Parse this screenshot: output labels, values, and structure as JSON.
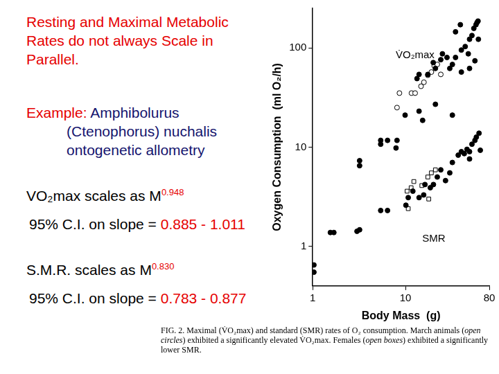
{
  "chart_data": {
    "type": "scatter",
    "ylabel": "Oxygen Consumption  (ml O₂/h)",
    "xlabel": "Body Mass  (g)",
    "log": true,
    "grid": false,
    "xlim": [
      1,
      80
    ],
    "xticks": [
      1,
      10,
      80
    ],
    "ylim": [
      0.4,
      250
    ],
    "yticks": [
      1,
      10,
      100
    ],
    "series": [
      {
        "name": "V̇O₂max",
        "color": "#000000",
        "marker": "circle",
        "x": [
          3.2,
          3.2,
          5.4,
          5.4,
          6.4,
          7.9,
          8.1,
          9.9,
          14,
          15.3,
          21,
          32,
          13.3,
          14,
          17.4,
          19.9,
          21,
          24,
          25,
          28,
          30,
          32,
          34.6,
          34.6,
          39,
          40,
          44,
          47.5,
          49,
          52,
          54.5,
          57.5,
          59,
          60.5,
          61,
          56,
          49,
          40
        ],
        "values": [
          7.3,
          6.5,
          10.7,
          11.7,
          11.7,
          9.8,
          11.7,
          21,
          23,
          18.6,
          27,
          21,
          49,
          54,
          54,
          71,
          62,
          76,
          87,
          80,
          62,
          68,
          80,
          145,
          171,
          95,
          103,
          87,
          122,
          133,
          157,
          171,
          180,
          186,
          122,
          74,
          62,
          57
        ]
      },
      {
        "color": "#000000",
        "marker": "open_circle",
        "x": [
          8.6,
          8.1,
          11.6,
          12.7,
          14.7,
          15.8,
          17.4,
          19,
          20.4,
          22,
          24
        ],
        "values": [
          35,
          25,
          35,
          35,
          41,
          45,
          53,
          57,
          66,
          68,
          54
        ]
      },
      {
        "name": "SMR",
        "color": "#000000",
        "marker": "circle",
        "x": [
          1.03,
          1.03,
          1.55,
          1.69,
          3.0,
          3.2,
          5.4,
          6.4,
          10.1,
          10.7,
          12,
          14,
          15.7,
          16.2,
          18.5,
          20,
          22,
          24,
          27,
          30,
          32,
          37,
          40,
          43,
          46,
          49,
          52,
          56,
          58,
          62,
          64,
          49
        ],
        "values": [
          0.65,
          0.55,
          1.38,
          1.38,
          1.42,
          1.47,
          2.3,
          2.3,
          2.6,
          3.1,
          3.6,
          3.1,
          3.3,
          4.2,
          3.9,
          4.2,
          5.0,
          5.9,
          4.6,
          5.5,
          7.0,
          8.3,
          9.0,
          8.6,
          9.5,
          9.0,
          10.7,
          11.7,
          12.6,
          13.8,
          9.3,
          7.6
        ]
      },
      {
        "color": "#000000",
        "marker": "open_square",
        "x": [
          10.4,
          11.5,
          12.3,
          15,
          17.4,
          19,
          21,
          10.7,
          17.8
        ],
        "values": [
          3.6,
          3.9,
          4.5,
          4.1,
          5.0,
          5.5,
          5.9,
          2.4,
          3.0
        ]
      }
    ]
  },
  "slide": {
    "title": "Resting and Maximal Metabolic Rates do not always Scale in Parallel.",
    "example": {
      "label": "Example:",
      "species": "Amphibolurus",
      "synonym": "(Ctenophorus) nuchalis",
      "note": "ontogenetic allometry"
    },
    "results": [
      {
        "text": "VO₂max scales as M",
        "exponent": "0.948",
        "ci_label": "95% C.I. on slope = ",
        "ci": "0.885 - 1.011"
      },
      {
        "text": "S.M.R. scales as M",
        "exponent": "0.830",
        "ci_label": "95% C.I. on slope = ",
        "ci": "0.783 - 0.877"
      }
    ],
    "caption": {
      "figure": "FIG. 2.",
      "segments": [
        " Maximal (V̇O₂max) and standard (SMR) rates of O₂ consumption. March animals (",
        "open circles",
        ") exhibited a significantly elevated V̇O₂max. Females (",
        "open boxes",
        ") exhibited a significantly lower SMR."
      ]
    }
  }
}
